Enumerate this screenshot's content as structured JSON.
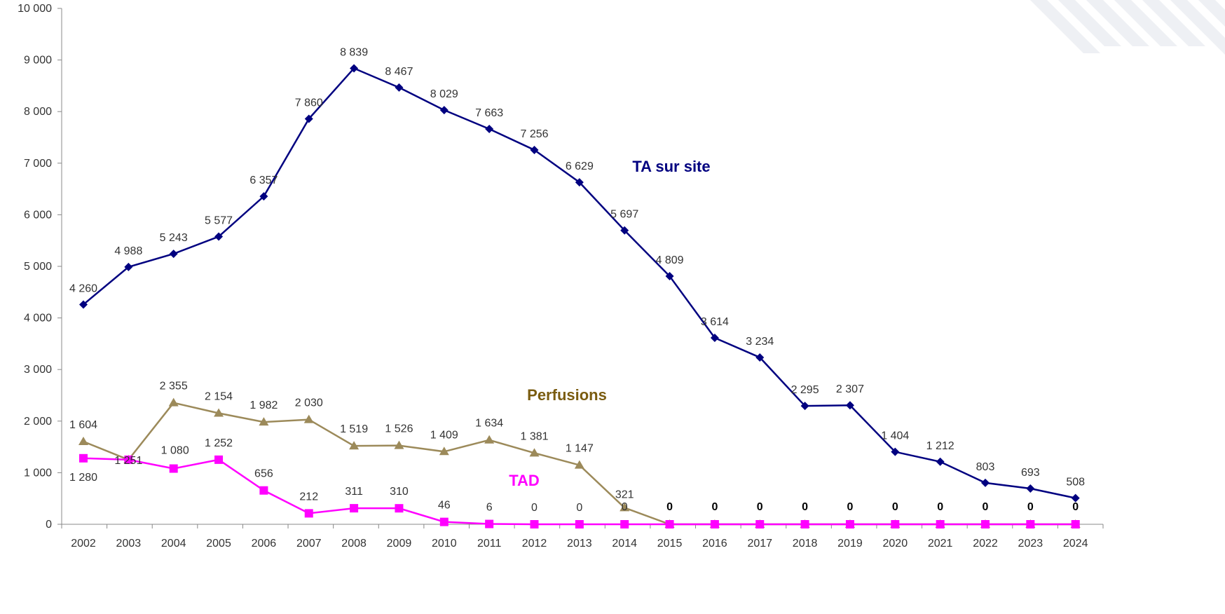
{
  "chart_data": {
    "type": "line",
    "title": "",
    "xlabel": "",
    "ylabel": "",
    "ylim": [
      0,
      10000
    ],
    "yticks": [
      0,
      1000,
      2000,
      3000,
      4000,
      5000,
      6000,
      7000,
      8000,
      9000,
      10000
    ],
    "ytick_labels": [
      "0",
      "1 000",
      "2 000",
      "3 000",
      "4 000",
      "5 000",
      "6 000",
      "7 000",
      "8 000",
      "9 000",
      "10 000"
    ],
    "grid": false,
    "legend": "inline labels",
    "categories": [
      "2002",
      "2003",
      "2004",
      "2005",
      "2006",
      "2007",
      "2008",
      "2009",
      "2010",
      "2011",
      "2012",
      "2013",
      "2014",
      "2015",
      "2016",
      "2017",
      "2018",
      "2019",
      "2020",
      "2021",
      "2022",
      "2023",
      "2024"
    ],
    "series": [
      {
        "name": "TA sur site",
        "color": "#000080",
        "marker": "diamond",
        "values": [
          4260,
          4988,
          5243,
          5577,
          6357,
          7860,
          8839,
          8467,
          8029,
          7663,
          7256,
          6629,
          5697,
          4809,
          3614,
          3234,
          2295,
          2307,
          1404,
          1212,
          803,
          693,
          508
        ],
        "labels": [
          "4 260",
          "4 988",
          "5 243",
          "5 577",
          "6 357",
          "7 860",
          "8 839",
          "8 467",
          "8 029",
          "7 663",
          "7 256",
          "6 629",
          "5 697",
          "4 809",
          "3 614",
          "3 234",
          "2 295",
          "2 307",
          "1 404",
          "1 212",
          "803",
          "693",
          "508"
        ]
      },
      {
        "name": "Perfusions",
        "color": "#9C8A5A",
        "label_color": "#7A5C10",
        "marker": "triangle",
        "values": [
          1604,
          1251,
          2355,
          2154,
          1982,
          2030,
          1519,
          1526,
          1409,
          1634,
          1381,
          1147,
          321,
          0,
          0,
          0,
          0,
          0,
          0,
          0,
          0,
          0,
          0
        ],
        "labels": [
          "1 604",
          "1 251",
          "2 355",
          "2 154",
          "1 982",
          "2 030",
          "1 519",
          "1 526",
          "1 409",
          "1 634",
          "1 381",
          "1 147",
          "321",
          "0",
          "0",
          "0",
          "0",
          "0",
          "0",
          "0",
          "0",
          "0",
          "0"
        ]
      },
      {
        "name": "TAD",
        "color": "#FF00FF",
        "marker": "square",
        "values": [
          1280,
          1251,
          1080,
          1252,
          656,
          212,
          311,
          310,
          46,
          6,
          0,
          0,
          0,
          0,
          0,
          0,
          0,
          0,
          0,
          0,
          0,
          0,
          0
        ],
        "labels": [
          "1 280",
          "1 251",
          "1 080",
          "1 252",
          "656",
          "212",
          "311",
          "310",
          "46",
          "6",
          "0",
          "0",
          "0",
          "0",
          "0",
          "0",
          "0",
          "0",
          "0",
          "0",
          "0",
          "0",
          "0"
        ]
      }
    ]
  }
}
